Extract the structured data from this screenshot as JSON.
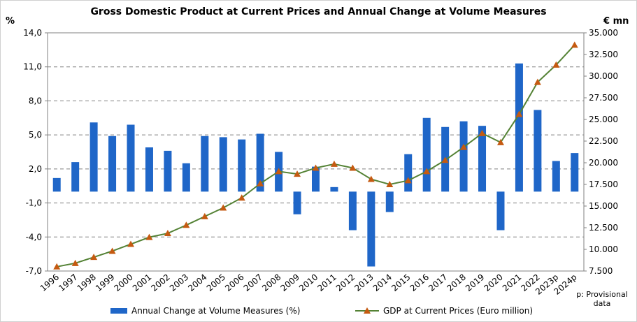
{
  "chart_data": {
    "type": "bar",
    "title": "Gross Domestic Product at Current Prices and Annual Change at Volume Measures",
    "ylabel_left": "%",
    "ylabel_right": "€ mn",
    "ylim_left": [
      -7.0,
      14.0
    ],
    "ylim_right": [
      7500,
      35000
    ],
    "yticks_left": [
      "14,0",
      "11,0",
      "8,0",
      "5,0",
      "2,0",
      "-1,0",
      "-4,0",
      "-7,0"
    ],
    "yticks_right": [
      "35.000",
      "32.500",
      "30.000",
      "27.500",
      "25.000",
      "22.500",
      "20.000",
      "17.500",
      "15.000",
      "12.500",
      "10.000",
      "7.500"
    ],
    "grid": true,
    "legend_position": "bottom",
    "categories": [
      "1996",
      "1997",
      "1998",
      "1999",
      "2000",
      "2001",
      "2002",
      "2003",
      "2004",
      "2005",
      "2006",
      "2007",
      "2008",
      "2009",
      "2010",
      "2011",
      "2012",
      "2013",
      "2014",
      "2015",
      "2016",
      "2017",
      "2018",
      "2019",
      "2020",
      "2021",
      "2022",
      "2023p",
      "2024p"
    ],
    "series": [
      {
        "name": "Annual Change at Volume Measures (%)",
        "type": "bar",
        "axis": "left",
        "color": "#1f66c8",
        "values": [
          1.2,
          2.6,
          6.1,
          4.9,
          5.9,
          3.9,
          3.6,
          2.5,
          4.9,
          4.8,
          4.6,
          5.1,
          3.5,
          -2.0,
          2.2,
          0.4,
          -3.4,
          -6.6,
          -1.8,
          3.3,
          6.5,
          5.7,
          6.2,
          5.8,
          -3.4,
          11.3,
          7.2,
          2.7,
          3.4
        ]
      },
      {
        "name": "GDP at Current Prices (Euro million)",
        "type": "line",
        "axis": "right",
        "color": "#548235",
        "marker_color": "#c55a11",
        "values": [
          8000,
          8400,
          9100,
          9800,
          10600,
          11400,
          11850,
          12800,
          13800,
          14800,
          15950,
          17600,
          19000,
          18700,
          19400,
          19850,
          19400,
          18100,
          17500,
          17950,
          19000,
          20300,
          21800,
          23400,
          22350,
          25600,
          29300,
          31300,
          33600
        ]
      }
    ]
  },
  "legend": {
    "bar_label": "Annual Change at Volume Measures (%)",
    "line_label": "GDP at Current Prices (Euro million)"
  },
  "note": "p: Provisional data"
}
